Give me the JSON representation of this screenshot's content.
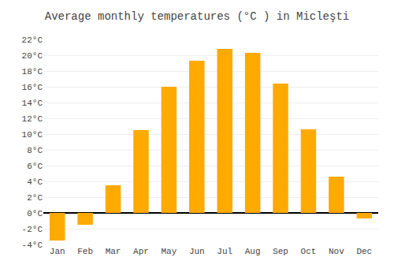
{
  "chart_data": {
    "type": "bar",
    "title": "Average monthly temperatures (°C ) in Micleşti",
    "categories": [
      "Jan",
      "Feb",
      "Mar",
      "Apr",
      "May",
      "Jun",
      "Jul",
      "Aug",
      "Sep",
      "Oct",
      "Nov",
      "Dec"
    ],
    "values": [
      -3.5,
      -1.5,
      3.5,
      10.5,
      16.0,
      19.3,
      20.8,
      20.3,
      16.4,
      10.6,
      4.6,
      -0.7
    ],
    "color": "#FFAA00",
    "ylim": [
      -4,
      22
    ],
    "yticks": [
      {
        "value": -4,
        "label": "-4°C"
      },
      {
        "value": -2,
        "label": "-2°C"
      },
      {
        "value": 0,
        "label": "0°C"
      },
      {
        "value": 2,
        "label": "2°C"
      },
      {
        "value": 4,
        "label": "4°C"
      },
      {
        "value": 6,
        "label": "6°C"
      },
      {
        "value": 8,
        "label": "8°C"
      },
      {
        "value": 10,
        "label": "10°C"
      },
      {
        "value": 12,
        "label": "12°C"
      },
      {
        "value": 14,
        "label": "14°C"
      },
      {
        "value": 16,
        "label": "16°C"
      },
      {
        "value": 18,
        "label": "18°C"
      },
      {
        "value": 20,
        "label": "20°C"
      },
      {
        "value": 22,
        "label": "22°C"
      }
    ],
    "grid": true
  }
}
